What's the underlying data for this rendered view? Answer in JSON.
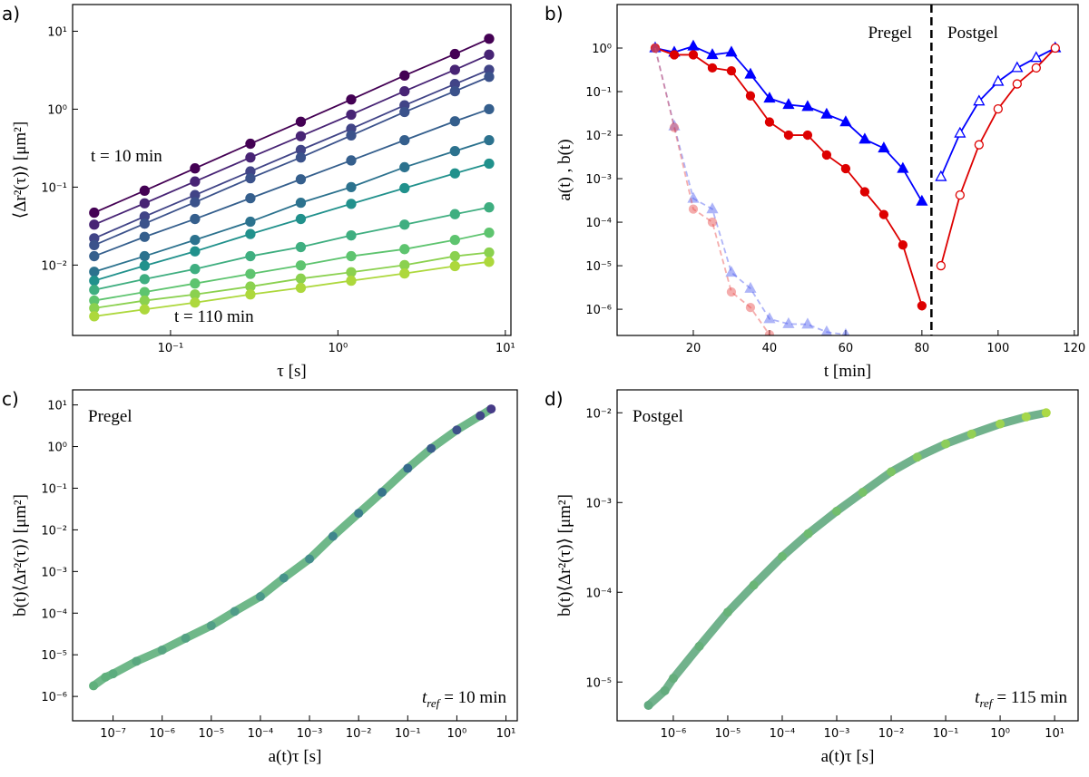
{
  "chart_data": [
    {
      "type": "line",
      "panel": "a)",
      "xlabel": "τ [s]",
      "ylabel": "⟨Δr²(τ)⟩ [μm²]",
      "xlog": true,
      "ylog": true,
      "xlim": [
        0.026,
        10.8
      ],
      "ylim": [
        0.00125,
        22
      ],
      "xticks": [
        {
          "value": 0.1,
          "label": "10⁻¹"
        },
        {
          "value": 1,
          "label": "10⁰"
        },
        {
          "value": 10,
          "label": "10¹"
        }
      ],
      "yticks": [
        {
          "value": 0.01,
          "label": "10⁻²"
        },
        {
          "value": 0.1,
          "label": "10⁻¹"
        },
        {
          "value": 1,
          "label": "10⁰"
        },
        {
          "value": 10,
          "label": "10¹"
        }
      ],
      "annotations": [
        "t = 10 min",
        "t = 110 min"
      ],
      "x": [
        0.035,
        0.07,
        0.14,
        0.3,
        0.6,
        1.2,
        2.5,
        5,
        8
      ],
      "series": [
        {
          "color": "#440154",
          "values": [
            0.047,
            0.09,
            0.174,
            0.36,
            0.69,
            1.33,
            2.7,
            5.1,
            8
          ]
        },
        {
          "color": "#482475",
          "values": [
            0.033,
            0.062,
            0.118,
            0.24,
            0.45,
            0.85,
            1.7,
            3.2,
            5.0
          ]
        },
        {
          "color": "#414487",
          "values": [
            0.022,
            0.042,
            0.079,
            0.159,
            0.3,
            0.56,
            1.12,
            2.1,
            3.2
          ]
        },
        {
          "color": "#3b528b",
          "values": [
            0.018,
            0.034,
            0.064,
            0.13,
            0.24,
            0.46,
            0.92,
            1.7,
            2.6
          ]
        },
        {
          "color": "#355f8d",
          "values": [
            0.013,
            0.023,
            0.039,
            0.072,
            0.126,
            0.22,
            0.4,
            0.7,
            1.0
          ]
        },
        {
          "color": "#2c728e",
          "values": [
            0.0082,
            0.013,
            0.021,
            0.036,
            0.063,
            0.1,
            0.18,
            0.29,
            0.4
          ]
        },
        {
          "color": "#21918c",
          "values": [
            0.0063,
            0.0098,
            0.015,
            0.025,
            0.039,
            0.061,
            0.097,
            0.15,
            0.2
          ]
        },
        {
          "color": "#3fae80",
          "values": [
            0.0048,
            0.0066,
            0.0089,
            0.013,
            0.017,
            0.024,
            0.033,
            0.045,
            0.055
          ]
        },
        {
          "color": "#5ec46f",
          "values": [
            0.0035,
            0.0045,
            0.0058,
            0.0077,
            0.0099,
            0.013,
            0.016,
            0.021,
            0.026
          ]
        },
        {
          "color": "#8bd14f",
          "values": [
            0.0028,
            0.0035,
            0.0042,
            0.0053,
            0.0067,
            0.0081,
            0.01,
            0.013,
            0.0145
          ]
        },
        {
          "color": "#add83c",
          "values": [
            0.0022,
            0.0027,
            0.0033,
            0.0042,
            0.0051,
            0.0063,
            0.0078,
            0.0097,
            0.011
          ]
        }
      ]
    },
    {
      "type": "line",
      "panel": "b)",
      "xlabel": "t [min]",
      "ylabel": "a(t) , b(t)",
      "xlog": false,
      "ylog": true,
      "xlim": [
        0,
        121
      ],
      "ylim": [
        2.5e-07,
        10
      ],
      "xticks": [
        20,
        40,
        60,
        80,
        100,
        120
      ],
      "yticks": [
        {
          "value": 1e-06,
          "label": "10⁻⁶"
        },
        {
          "value": 1e-05,
          "label": "10⁻⁵"
        },
        {
          "value": 0.0001,
          "label": "10⁻⁴"
        },
        {
          "value": 0.001,
          "label": "10⁻³"
        },
        {
          "value": 0.01,
          "label": "10⁻²"
        },
        {
          "value": 0.1,
          "label": "10⁻¹"
        },
        {
          "value": 1,
          "label": "10⁰"
        }
      ],
      "annotations": [
        "Pregel",
        "Postgel"
      ],
      "vline": 82.5,
      "series": [
        {
          "color": "#0000ff",
          "marker": "triangle",
          "filled": true,
          "dashed": false,
          "opacity": 1,
          "x": [
            10,
            15,
            20,
            25,
            30,
            35,
            40,
            45,
            50,
            55,
            60,
            65,
            70,
            75,
            80
          ],
          "values": [
            1,
            0.8,
            1.1,
            0.7,
            0.8,
            0.25,
            0.07,
            0.05,
            0.045,
            0.03,
            0.02,
            0.008,
            0.005,
            0.0017,
            0.0003
          ]
        },
        {
          "color": "#dd0000",
          "marker": "circle",
          "filled": true,
          "dashed": false,
          "opacity": 1,
          "x": [
            10,
            15,
            20,
            25,
            30,
            35,
            40,
            45,
            50,
            55,
            60,
            65,
            70,
            75,
            80
          ],
          "values": [
            1,
            0.7,
            0.7,
            0.35,
            0.3,
            0.08,
            0.02,
            0.01,
            0.01,
            0.0035,
            0.0017,
            0.0005,
            0.00015,
            3e-05,
            1.2e-06
          ]
        },
        {
          "color": "#0000ff",
          "marker": "triangle",
          "filled": false,
          "dashed": false,
          "opacity": 1,
          "x": [
            85,
            90,
            95,
            100,
            105,
            110,
            115
          ],
          "values": [
            0.0011,
            0.011,
            0.06,
            0.17,
            0.35,
            0.6,
            1.0
          ]
        },
        {
          "color": "#dd0000",
          "marker": "circle",
          "filled": false,
          "dashed": false,
          "opacity": 1,
          "x": [
            85,
            90,
            95,
            100,
            105,
            110,
            115
          ],
          "values": [
            1e-05,
            0.00042,
            0.006,
            0.04,
            0.15,
            0.35,
            1.0
          ]
        },
        {
          "color": "#4d5cf0",
          "marker": "triangle",
          "filled": true,
          "dashed": true,
          "opacity": 0.45,
          "x": [
            10,
            15,
            20,
            25,
            30,
            35,
            40,
            45,
            50,
            55,
            60
          ],
          "values": [
            1,
            0.016,
            0.00035,
            0.0002,
            7e-06,
            3e-06,
            6e-07,
            4.6e-07,
            4.5e-07,
            3e-07,
            2.6e-07
          ]
        },
        {
          "color": "#e84a4a",
          "marker": "circle",
          "filled": true,
          "dashed": true,
          "opacity": 0.45,
          "x": [
            10,
            15,
            20,
            25,
            30,
            35,
            40
          ],
          "values": [
            1,
            0.015,
            0.0002,
            0.0001,
            2.5e-06,
            1.1e-06,
            2.6e-07
          ]
        }
      ]
    },
    {
      "type": "scatter",
      "panel": "c)",
      "xlabel": "a(t)τ [s]",
      "ylabel": "b(t)⟨Δr²(τ)⟩ [μm²]",
      "xlog": true,
      "ylog": true,
      "xlim": [
        1.5e-08,
        17
      ],
      "ylim": [
        2.6e-07,
        23
      ],
      "xticks": [
        {
          "value": 1e-07,
          "label": "10⁻⁷"
        },
        {
          "value": 1e-06,
          "label": "10⁻⁶"
        },
        {
          "value": 1e-05,
          "label": "10⁻⁵"
        },
        {
          "value": 0.0001,
          "label": "10⁻⁴"
        },
        {
          "value": 0.001,
          "label": "10⁻³"
        },
        {
          "value": 0.01,
          "label": "10⁻²"
        },
        {
          "value": 0.1,
          "label": "10⁻¹"
        },
        {
          "value": 1,
          "label": "10⁰"
        },
        {
          "value": 10,
          "label": "10¹"
        }
      ],
      "yticks": [
        {
          "value": 1e-06,
          "label": "10⁻⁶"
        },
        {
          "value": 1e-05,
          "label": "10⁻⁵"
        },
        {
          "value": 0.0001,
          "label": "10⁻⁴"
        },
        {
          "value": 0.001,
          "label": "10⁻³"
        },
        {
          "value": 0.01,
          "label": "10⁻²"
        },
        {
          "value": 0.1,
          "label": "10⁻¹"
        },
        {
          "value": 1,
          "label": "10⁰"
        },
        {
          "value": 10,
          "label": "10¹"
        }
      ],
      "label": "Pregel",
      "tref": {
        "symbol": "t",
        "subscript": "ref",
        "text": "= 10 min"
      },
      "series": [
        {
          "x": [
            4e-08,
            7e-08,
            1e-07,
            3e-07,
            1e-06,
            3e-06,
            1e-05,
            3e-05,
            0.0001,
            0.0003,
            0.001,
            0.003,
            0.01,
            0.03,
            0.1,
            0.3,
            1,
            3,
            5
          ],
          "values": [
            1.8e-06,
            2.9e-06,
            3.5e-06,
            7e-06,
            1.3e-05,
            2.5e-05,
            5e-05,
            0.00011,
            0.00025,
            0.0007,
            0.002,
            0.007,
            0.025,
            0.08,
            0.3,
            0.9,
            2.5,
            5.5,
            8
          ],
          "colors": [
            "#5fb07c",
            "#5fb07c",
            "#5cac7e",
            "#5aa880",
            "#58a582",
            "#55a284",
            "#529f86",
            "#4f9c88",
            "#4b988a",
            "#47938b",
            "#438d8c",
            "#3f868c",
            "#3b7e8c",
            "#38758c",
            "#366b8c",
            "#3a5e8b",
            "#3e528a",
            "#424688",
            "#463b87"
          ]
        }
      ]
    },
    {
      "type": "scatter",
      "panel": "d)",
      "xlabel": "a(t)τ [s]",
      "ylabel": "b(t)⟨Δr²(τ)⟩ [μm²]",
      "xlog": true,
      "ylog": true,
      "xlim": [
        9.3e-08,
        27
      ],
      "ylim": [
        3.7e-06,
        0.018
      ],
      "xticks": [
        {
          "value": 1e-06,
          "label": "10⁻⁶"
        },
        {
          "value": 1e-05,
          "label": "10⁻⁵"
        },
        {
          "value": 0.0001,
          "label": "10⁻⁴"
        },
        {
          "value": 0.001,
          "label": "10⁻³"
        },
        {
          "value": 0.01,
          "label": "10⁻²"
        },
        {
          "value": 0.1,
          "label": "10⁻¹"
        },
        {
          "value": 1,
          "label": "10⁰"
        },
        {
          "value": 10,
          "label": "10¹"
        }
      ],
      "yticks": [
        {
          "value": 1e-05,
          "label": "10⁻⁵"
        },
        {
          "value": 0.0001,
          "label": "10⁻⁴"
        },
        {
          "value": 0.001,
          "label": "10⁻³"
        },
        {
          "value": 0.01,
          "label": "10⁻²"
        }
      ],
      "label": "Postgel",
      "tref": {
        "symbol": "t",
        "subscript": "ref",
        "text": "= 115 min"
      },
      "series": [
        {
          "x": [
            3.5e-07,
            7e-07,
            1e-06,
            3e-06,
            1e-05,
            3e-05,
            0.0001,
            0.0003,
            0.001,
            0.003,
            0.01,
            0.03,
            0.1,
            0.3,
            1,
            3,
            7
          ],
          "values": [
            5.5e-06,
            8e-06,
            1.1e-05,
            2.5e-05,
            6e-05,
            0.00012,
            0.00025,
            0.00045,
            0.0008,
            0.0013,
            0.0022,
            0.0032,
            0.0045,
            0.0058,
            0.0075,
            0.009,
            0.01
          ],
          "colors": [
            "#62aa80",
            "#63ac7e",
            "#64ae7c",
            "#65b07a",
            "#67b378",
            "#69b576",
            "#6bb873",
            "#6ebb70",
            "#72be6c",
            "#77c268",
            "#7dc564",
            "#84c95f",
            "#8ccd5a",
            "#94d055",
            "#9dd450",
            "#a5d74b",
            "#acd946"
          ]
        }
      ]
    }
  ]
}
